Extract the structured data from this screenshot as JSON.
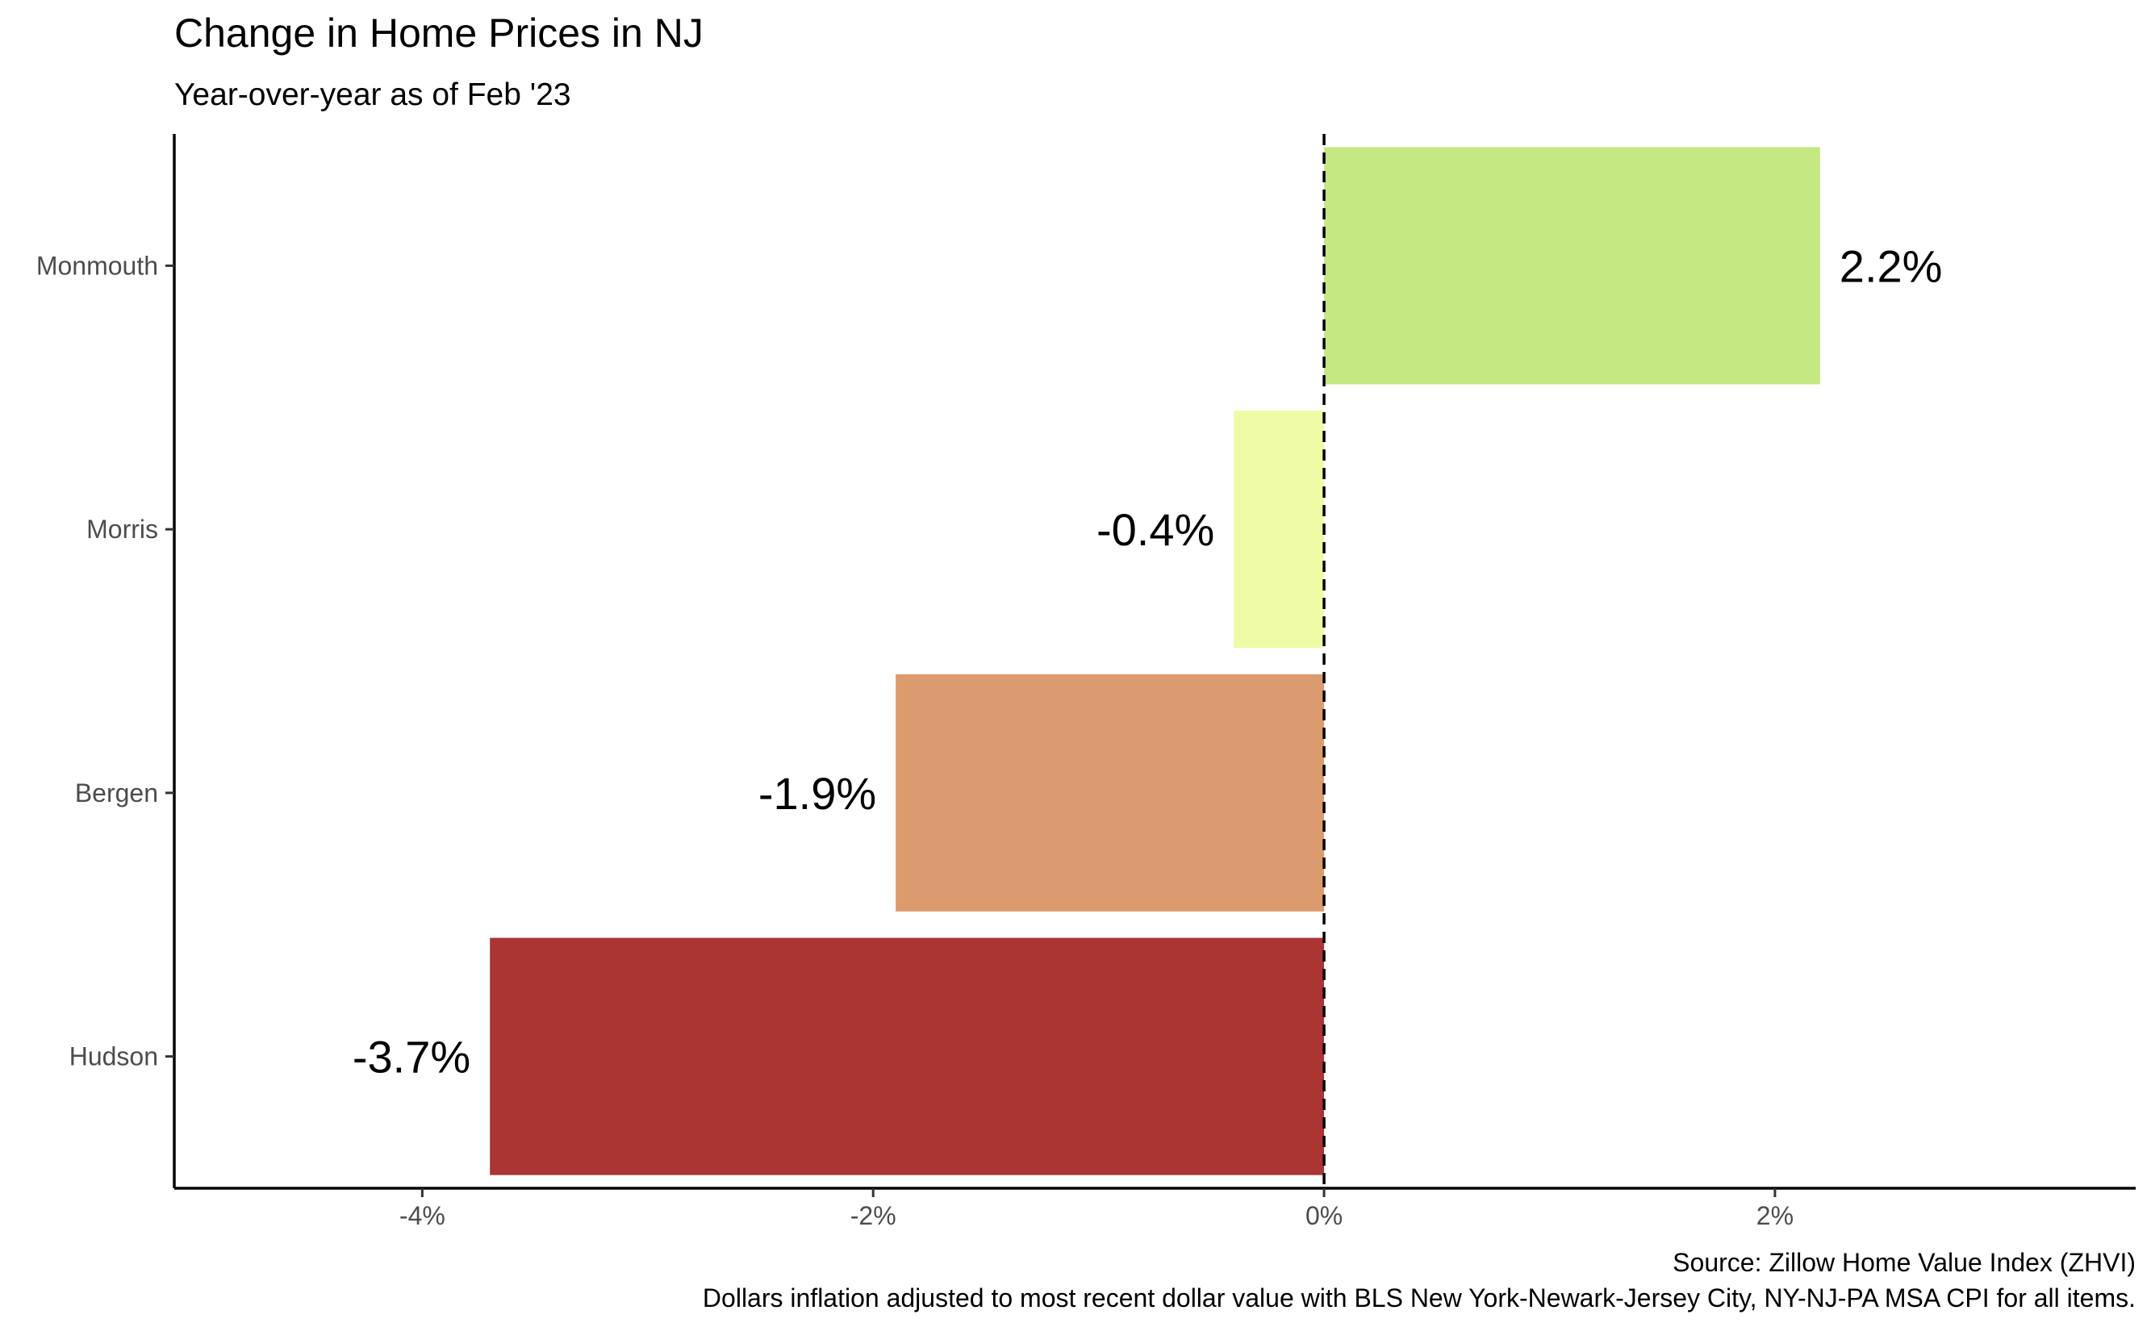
{
  "chart_data": {
    "type": "bar",
    "orientation": "horizontal",
    "title": "Change in Home Prices in NJ",
    "subtitle": "Year-over-year as of Feb '23",
    "xlabel": "",
    "ylabel": "",
    "categories": [
      "Monmouth",
      "Morris",
      "Bergen",
      "Hudson"
    ],
    "values": [
      2.2,
      -0.4,
      -1.9,
      -3.7
    ],
    "data_labels": [
      "2.2%",
      "-0.4%",
      "-1.9%",
      "-3.7%"
    ],
    "colors": [
      "#c5e882",
      "#f0fba5",
      "#dc9b6e",
      "#aa3533"
    ],
    "xlim": [
      -5.1,
      3.6
    ],
    "x_ticks": [
      -4,
      -2,
      0,
      2
    ],
    "x_tick_labels": [
      "-4%",
      "-2%",
      "0%",
      "2%"
    ],
    "reference_line": {
      "x": 0,
      "style": "dashed"
    },
    "grid": false,
    "legend": "none",
    "caption": [
      "Source: Zillow Home Value Index (ZHVI)",
      "Dollars inflation adjusted to most recent dollar value with BLS New York-Newark-Jersey City, NY-NJ-PA MSA CPI for all items."
    ]
  }
}
